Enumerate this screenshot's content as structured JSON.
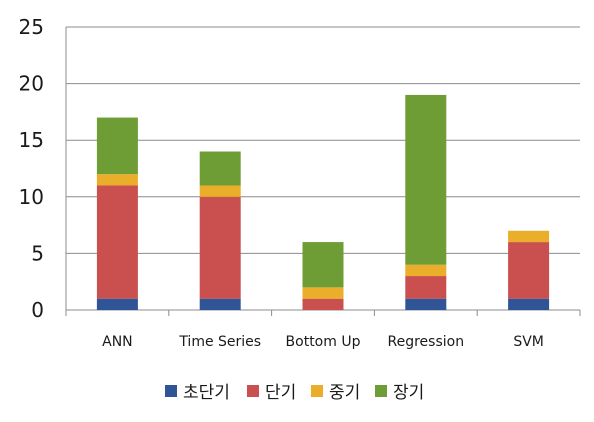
{
  "chart_data": {
    "type": "bar",
    "stacked": true,
    "categories": [
      "ANN",
      "Time Series",
      "Bottom Up",
      "Regression",
      "SVM"
    ],
    "series": [
      {
        "name": "초단기",
        "color": "#2f5597",
        "values": [
          1,
          1,
          0,
          1,
          1
        ]
      },
      {
        "name": "단기",
        "color": "#c9504f",
        "values": [
          10,
          9,
          1,
          2,
          5
        ]
      },
      {
        "name": "중기",
        "color": "#eaae2a",
        "values": [
          1,
          1,
          1,
          1,
          1
        ]
      },
      {
        "name": "장기",
        "color": "#6e9d35",
        "values": [
          5,
          3,
          4,
          15,
          0
        ]
      }
    ],
    "ylim": [
      0,
      25
    ],
    "yticks": [
      0,
      5,
      10,
      15,
      20,
      25
    ],
    "grid": true,
    "legend_position": "bottom",
    "title": "",
    "xlabel": "",
    "ylabel": ""
  }
}
